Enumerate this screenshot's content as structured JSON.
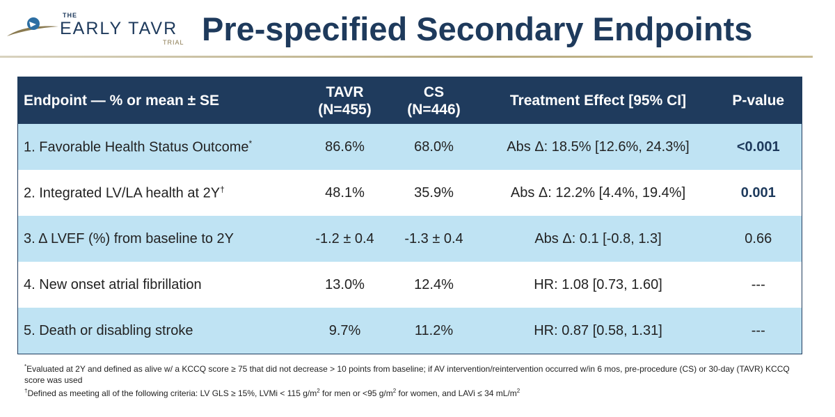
{
  "header": {
    "logo": {
      "the": "THE",
      "name": "EARLY TAVR",
      "trial": "TRIAL"
    },
    "title": "Pre-specified Secondary Endpoints"
  },
  "table": {
    "columns": {
      "endpoint": "Endpoint — % or mean ± SE",
      "tavr_line1": "TAVR",
      "tavr_line2": "(N=455)",
      "cs_line1": "CS",
      "cs_line2": "(N=446)",
      "effect": "Treatment Effect [95% CI]",
      "pvalue": "P-value"
    },
    "rows": [
      {
        "endpoint": "1. Favorable Health Status Outcome",
        "mark": "*",
        "tavr": "86.6%",
        "cs": "68.0%",
        "effect": "Abs Δ: 18.5% [12.6%, 24.3%]",
        "pvalue": "<0.001"
      },
      {
        "endpoint": "2. Integrated LV/LA health at 2Y",
        "mark": "†",
        "tavr": "48.1%",
        "cs": "35.9%",
        "effect": "Abs Δ: 12.2% [4.4%, 19.4%]",
        "pvalue": "0.001"
      },
      {
        "endpoint": "3. Δ LVEF (%) from baseline to 2Y",
        "mark": "",
        "tavr": "-1.2 ± 0.4",
        "cs": "-1.3 ± 0.4",
        "effect": "Abs Δ: 0.1 [-0.8, 1.3]",
        "pvalue": "0.66"
      },
      {
        "endpoint": "4. New onset atrial fibrillation",
        "mark": "",
        "tavr": "13.0%",
        "cs": "12.4%",
        "effect": "HR: 1.08 [0.73, 1.60]",
        "pvalue": "---"
      },
      {
        "endpoint": "5. Death or disabling stroke",
        "mark": "",
        "tavr": "9.7%",
        "cs": "11.2%",
        "effect": "HR: 0.87 [0.58, 1.31]",
        "pvalue": "---"
      }
    ]
  },
  "footnotes": {
    "fn1_mark": "*",
    "fn1_text": "Evaluated at 2Y and defined as alive w/ a KCCQ score ≥ 75 that did not decrease > 10 points from baseline; if AV intervention/reintervention occurred w/in 6 mos, pre-procedure (CS) or 30-day (TAVR) KCCQ score was used",
    "fn2_mark": "†",
    "fn2_part1": "Defined as meeting all of the following criteria: LV GLS ≥ 15%, LVMi < 115 g/m",
    "fn2_sup1": "2",
    "fn2_part2": " for men or <95 g/m",
    "fn2_sup2": "2",
    "fn2_part3": " for women, and LAVi ≤ 34 mL/m",
    "fn2_sup3": "2"
  },
  "colors": {
    "navy": "#1f3b5d",
    "row_shade": "#bfe3f3",
    "gold_rule": "#b8ab7f"
  }
}
